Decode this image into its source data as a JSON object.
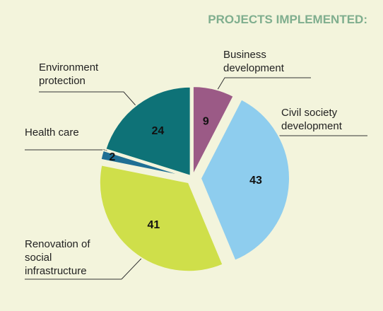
{
  "chart_data": {
    "type": "pie",
    "title": "PROJECTS IMPLEMENTED:",
    "categories": [
      "Business development",
      "Civil society development",
      "Renovation of social infrastructure",
      "Health care",
      "Environment protection"
    ],
    "values": [
      9,
      43,
      41,
      2,
      24
    ],
    "colors": [
      "#9b5a86",
      "#8ecdee",
      "#cfdf4a",
      "#1f6f94",
      "#0e7277"
    ]
  }
}
